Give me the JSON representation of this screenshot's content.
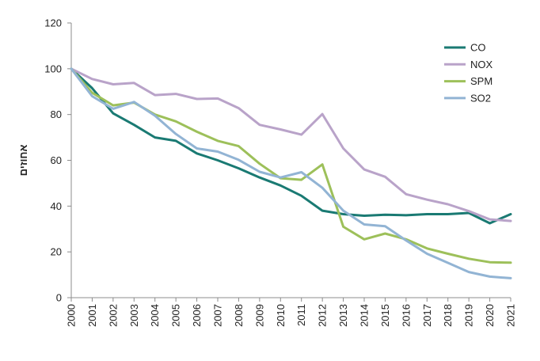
{
  "chart_data": {
    "type": "line",
    "x": [
      "2000",
      "2001",
      "2002",
      "2003",
      "2004",
      "2005",
      "2006",
      "2007",
      "2008",
      "2009",
      "2010",
      "2011",
      "2012",
      "2013",
      "2014",
      "2015",
      "2016",
      "2017",
      "2018",
      "2019",
      "2020",
      "2021"
    ],
    "ylabel": "אחוזים",
    "xlabel": "",
    "title": "",
    "ylim": [
      0,
      120
    ],
    "yticks": [
      "0",
      "20",
      "40",
      "60",
      "80",
      "100",
      "120"
    ],
    "grid": false,
    "legend_position": "top-right",
    "series": [
      {
        "name": "CO",
        "color": "#1a7a73",
        "values": [
          100,
          91.5,
          80.5,
          75.5,
          70,
          68.5,
          63,
          60,
          56.5,
          52.5,
          49,
          44.5,
          38,
          36.5,
          35.8,
          36.2,
          36,
          36.5,
          36.5,
          37,
          32.5,
          36.5
        ]
      },
      {
        "name": "NOX",
        "color": "#b9a3c9",
        "values": [
          100,
          95.5,
          93.2,
          93.8,
          88.5,
          89,
          86.8,
          87,
          82.8,
          75.5,
          73.5,
          71.2,
          80.2,
          65.2,
          56,
          52.8,
          45.2,
          42.8,
          40.8,
          37.8,
          34.2,
          33.5
        ]
      },
      {
        "name": "SPM",
        "color": "#9dc05a",
        "values": [
          100,
          89.5,
          84,
          85.2,
          80,
          77,
          72.5,
          68.5,
          66.2,
          58.5,
          52.2,
          51.5,
          58.2,
          31,
          25.5,
          28,
          25.5,
          21.5,
          19.2,
          17,
          15.5,
          15.3
        ]
      },
      {
        "name": "SO2",
        "color": "#92b4d4",
        "values": [
          100,
          88,
          82.5,
          85.5,
          79.5,
          71.5,
          65.2,
          63.8,
          60.2,
          55,
          52.5,
          54.8,
          48,
          38,
          32,
          31.2,
          25,
          19.2,
          15.2,
          11.2,
          9.2,
          8.5
        ]
      }
    ]
  }
}
